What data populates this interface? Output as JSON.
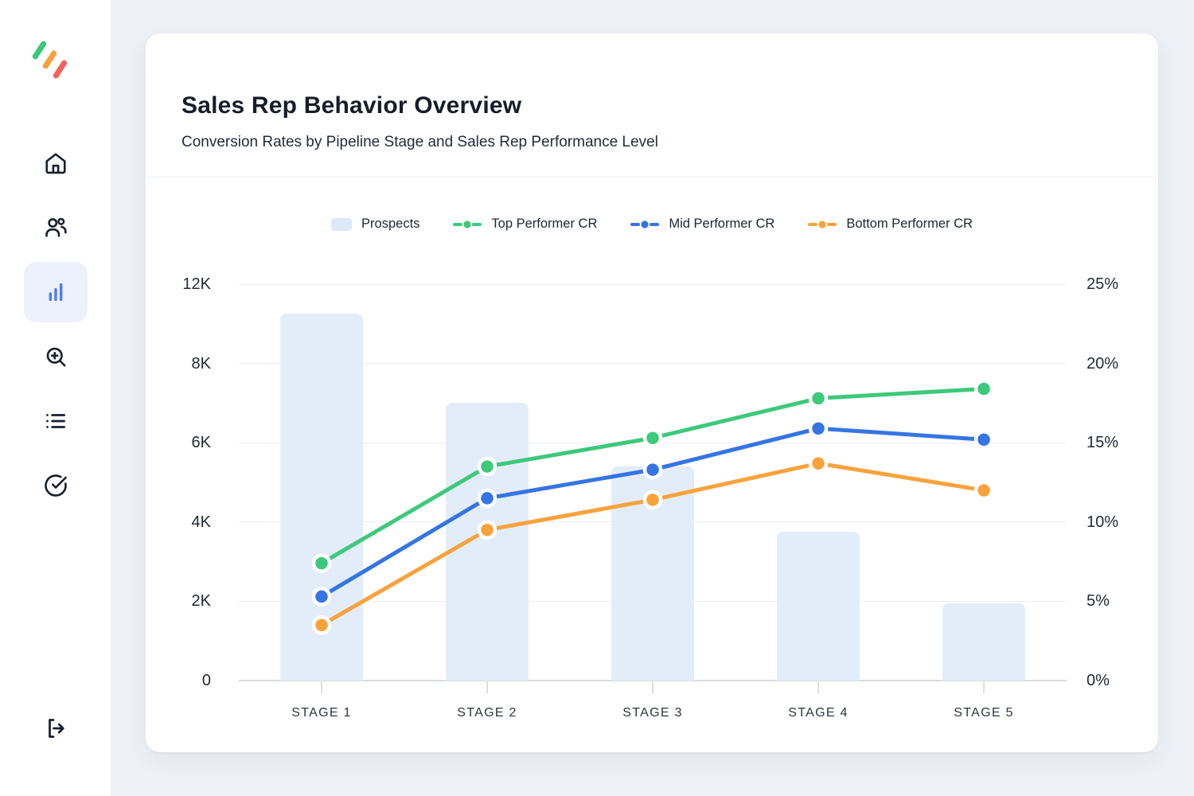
{
  "sidebar": {
    "logo_colors": [
      "#3BC778",
      "#F9A03C",
      "#F5625D"
    ],
    "items": [
      {
        "icon": "home-icon",
        "active": false
      },
      {
        "icon": "users-icon",
        "active": false
      },
      {
        "icon": "bar-chart-icon",
        "active": true
      },
      {
        "icon": "zoom-in-icon",
        "active": false
      },
      {
        "icon": "list-icon",
        "active": false
      },
      {
        "icon": "check-circle-icon",
        "active": false
      }
    ],
    "logout_icon": "logout-icon",
    "active_color": "#4D7DF2",
    "active_bg": "#EDF1FC",
    "icon_color": "#18202E"
  },
  "header": {
    "title": "Sales Rep Behavior Overview",
    "subtitle": "Conversion Rates by Pipeline Stage and Sales Rep Performance Level"
  },
  "legend": [
    {
      "label": "Prospects",
      "type": "swatch",
      "color": "#DCE9FA"
    },
    {
      "label": "Top Performer CR",
      "type": "line",
      "color": "#3DC97B"
    },
    {
      "label": "Mid Performer CR",
      "type": "line",
      "color": "#3575E3"
    },
    {
      "label": "Bottom Performer CR",
      "type": "line",
      "color": "#F9A23C"
    }
  ],
  "chart_data": {
    "type": "bar+line combo",
    "categories": [
      "STAGE 1",
      "STAGE 2",
      "STAGE 3",
      "STAGE 4",
      "STAGE 5"
    ],
    "bar_series": {
      "name": "Prospects",
      "axis": "left",
      "color": "#E3EDFA",
      "values": [
        10500,
        7000,
        5400,
        3750,
        1950
      ]
    },
    "line_series": [
      {
        "name": "Top Performer CR",
        "axis": "right",
        "color": "#3DC97B",
        "values": [
          7.4,
          13.5,
          15.3,
          17.8,
          18.4
        ]
      },
      {
        "name": "Mid Performer CR",
        "axis": "right",
        "color": "#3575E3",
        "values": [
          5.3,
          11.5,
          13.3,
          15.9,
          15.2
        ]
      },
      {
        "name": "Bottom Performer CR",
        "axis": "right",
        "color": "#F9A23C",
        "values": [
          3.5,
          9.5,
          11.4,
          13.7,
          12.0
        ]
      }
    ],
    "left_axis_ticks": [
      "0",
      "2K",
      "4K",
      "6K",
      "8K",
      "12K"
    ],
    "right_axis_ticks": [
      "0%",
      "5%",
      "10%",
      "15%",
      "20%",
      "25%"
    ],
    "right_axis_range": [
      0,
      25
    ],
    "grid": true,
    "legend_position": "top-center"
  }
}
